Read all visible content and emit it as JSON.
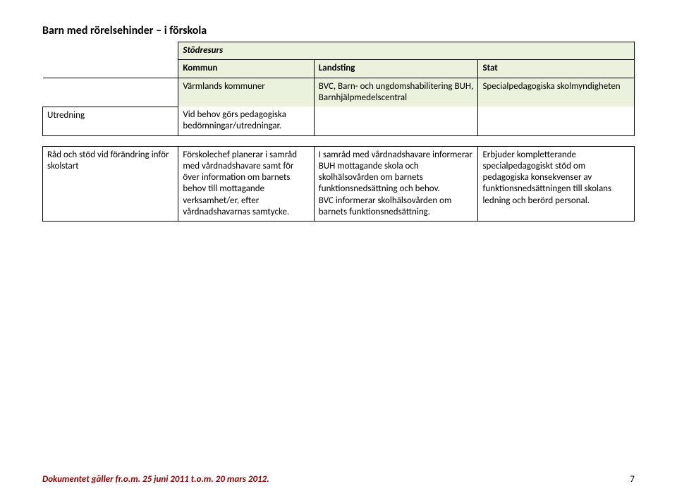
{
  "title": "Barn med rörelsehinder – i förskola",
  "table": {
    "resource_label": "Stödresurs",
    "headers": {
      "c1": "Kommun",
      "c2": "Landsting",
      "c3": "Stat"
    },
    "subheader": {
      "c1": "Värmlands kommuner",
      "c2": "BVC, Barn- och ungdomshabilitering BUH, Barnhjälpmedelscentral",
      "c3": "Specialpedagogiska skolmyndigheten"
    },
    "rows": [
      {
        "label": "Utredning",
        "c1": "Vid behov görs pedagogiska bedömningar/utredningar.",
        "c2": "",
        "c3": ""
      },
      {
        "label": "Råd och stöd vid förändring inför skolstart",
        "c1": "Förskolechef planerar i samråd med vårdnadshavare samt för över information om barnets behov till mottagande verksamhet/er, efter vårdnadshavarnas samtycke.",
        "c2": "I samråd med vårdnadshavare informerar BUH mottagande skola och skolhälsovården om barnets funktionsnedsättning och behov.\nBVC informerar skolhälsovården om barnets funktionsnedsättning.",
        "c3": "Erbjuder kompletterande specialpedagogiskt stöd om pedagogiska konsekvenser av funktionsnedsättningen till skolans ledning och berörd personal."
      }
    ]
  },
  "footer": "Dokumentet gäller fr.o.m. 25 juni 2011 t.o.m. 20 mars 2012.",
  "page_number": "7"
}
